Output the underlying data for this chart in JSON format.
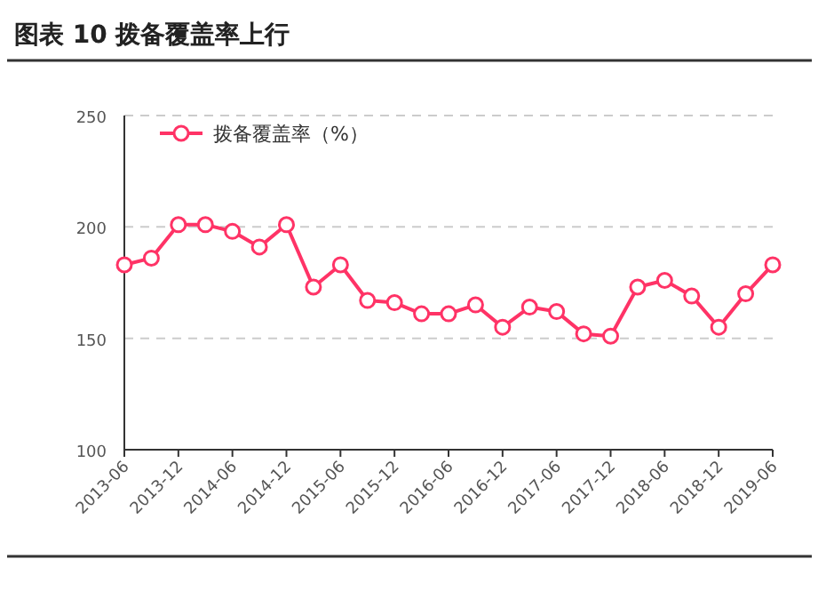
{
  "chart_data": {
    "type": "line",
    "title": "图表  10 拨备覆盖率上行",
    "categories": [
      "2013-06",
      null,
      "2013-12",
      null,
      "2014-06",
      null,
      "2014-12",
      null,
      "2015-06",
      null,
      "2015-12",
      null,
      "2016-06",
      null,
      "2016-12",
      null,
      "2017-06",
      null,
      "2017-12",
      null,
      "2018-06",
      null,
      "2018-12",
      null,
      "2019-06"
    ],
    "series": [
      {
        "name": "拨备覆盖率（%）",
        "color": "#ff3366",
        "values": [
          183,
          186,
          201,
          201,
          198,
          191,
          201,
          173,
          183,
          167,
          166,
          161,
          161,
          165,
          155,
          164,
          162,
          152,
          151,
          173,
          176,
          169,
          155,
          170,
          183
        ]
      }
    ],
    "ylim": [
      100,
      250
    ],
    "yticks": [
      100,
      150,
      200,
      250
    ],
    "grid": "y",
    "legend": "top left",
    "marker": "circle",
    "line_style": "solid"
  }
}
